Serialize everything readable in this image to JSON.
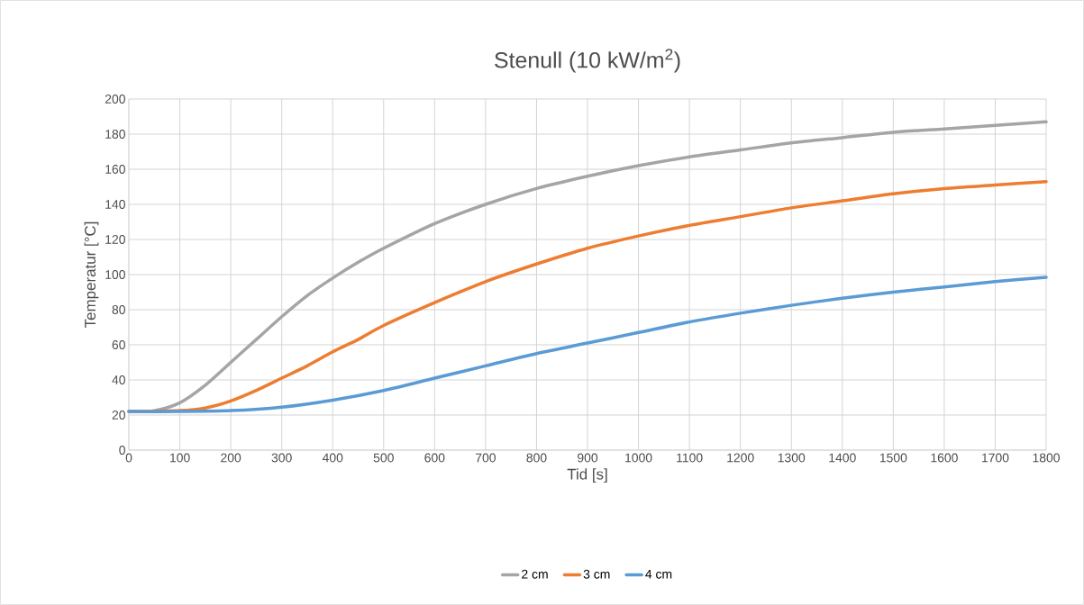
{
  "chart_data": {
    "type": "line",
    "title": "Stenull (10 kW/m$^{2}$)",
    "xlabel": "Tid [s]",
    "ylabel": "Temperatur [°C]",
    "xlim": [
      0,
      1800
    ],
    "ylim": [
      0,
      200
    ],
    "xticks": [
      0,
      100,
      200,
      300,
      400,
      500,
      600,
      700,
      800,
      900,
      1000,
      1100,
      1200,
      1300,
      1400,
      1500,
      1600,
      1700,
      1800
    ],
    "yticks": [
      0,
      20,
      40,
      60,
      80,
      100,
      120,
      140,
      160,
      180,
      200
    ],
    "grid": true,
    "legend": "bottom",
    "marker": "none",
    "line_style": "solid",
    "series": [
      {
        "name": "2 cm",
        "color": "#a5a5a5",
        "x": [
          0,
          50,
          100,
          150,
          200,
          250,
          300,
          350,
          400,
          450,
          500,
          600,
          700,
          800,
          900,
          1000,
          1100,
          1200,
          1300,
          1400,
          1500,
          1600,
          1700,
          1800
        ],
        "values": [
          22,
          22.5,
          27,
          37,
          50,
          63,
          76,
          88,
          98,
          107,
          115,
          129,
          140,
          149,
          156,
          162,
          167,
          171,
          175,
          178,
          181,
          183,
          185,
          187
        ]
      },
      {
        "name": "3 cm",
        "color": "#ed7d31",
        "x": [
          0,
          100,
          150,
          200,
          250,
          300,
          350,
          400,
          450,
          500,
          600,
          700,
          800,
          900,
          1000,
          1100,
          1200,
          1300,
          1400,
          1500,
          1600,
          1700,
          1800
        ],
        "values": [
          22,
          22.5,
          24,
          28,
          34,
          41,
          48,
          56,
          63,
          71,
          84,
          96,
          106,
          115,
          122,
          128,
          133,
          138,
          142,
          146,
          149,
          151,
          153
        ]
      },
      {
        "name": "4 cm",
        "color": "#5b9bd5",
        "x": [
          0,
          100,
          200,
          300,
          400,
          500,
          600,
          700,
          800,
          900,
          1000,
          1100,
          1200,
          1300,
          1400,
          1500,
          1600,
          1700,
          1800
        ],
        "values": [
          22,
          22,
          22.5,
          24.5,
          28.5,
          34,
          41,
          48,
          55,
          61,
          67,
          73,
          78,
          82.5,
          86.5,
          90,
          93,
          96,
          98.5
        ]
      }
    ]
  }
}
